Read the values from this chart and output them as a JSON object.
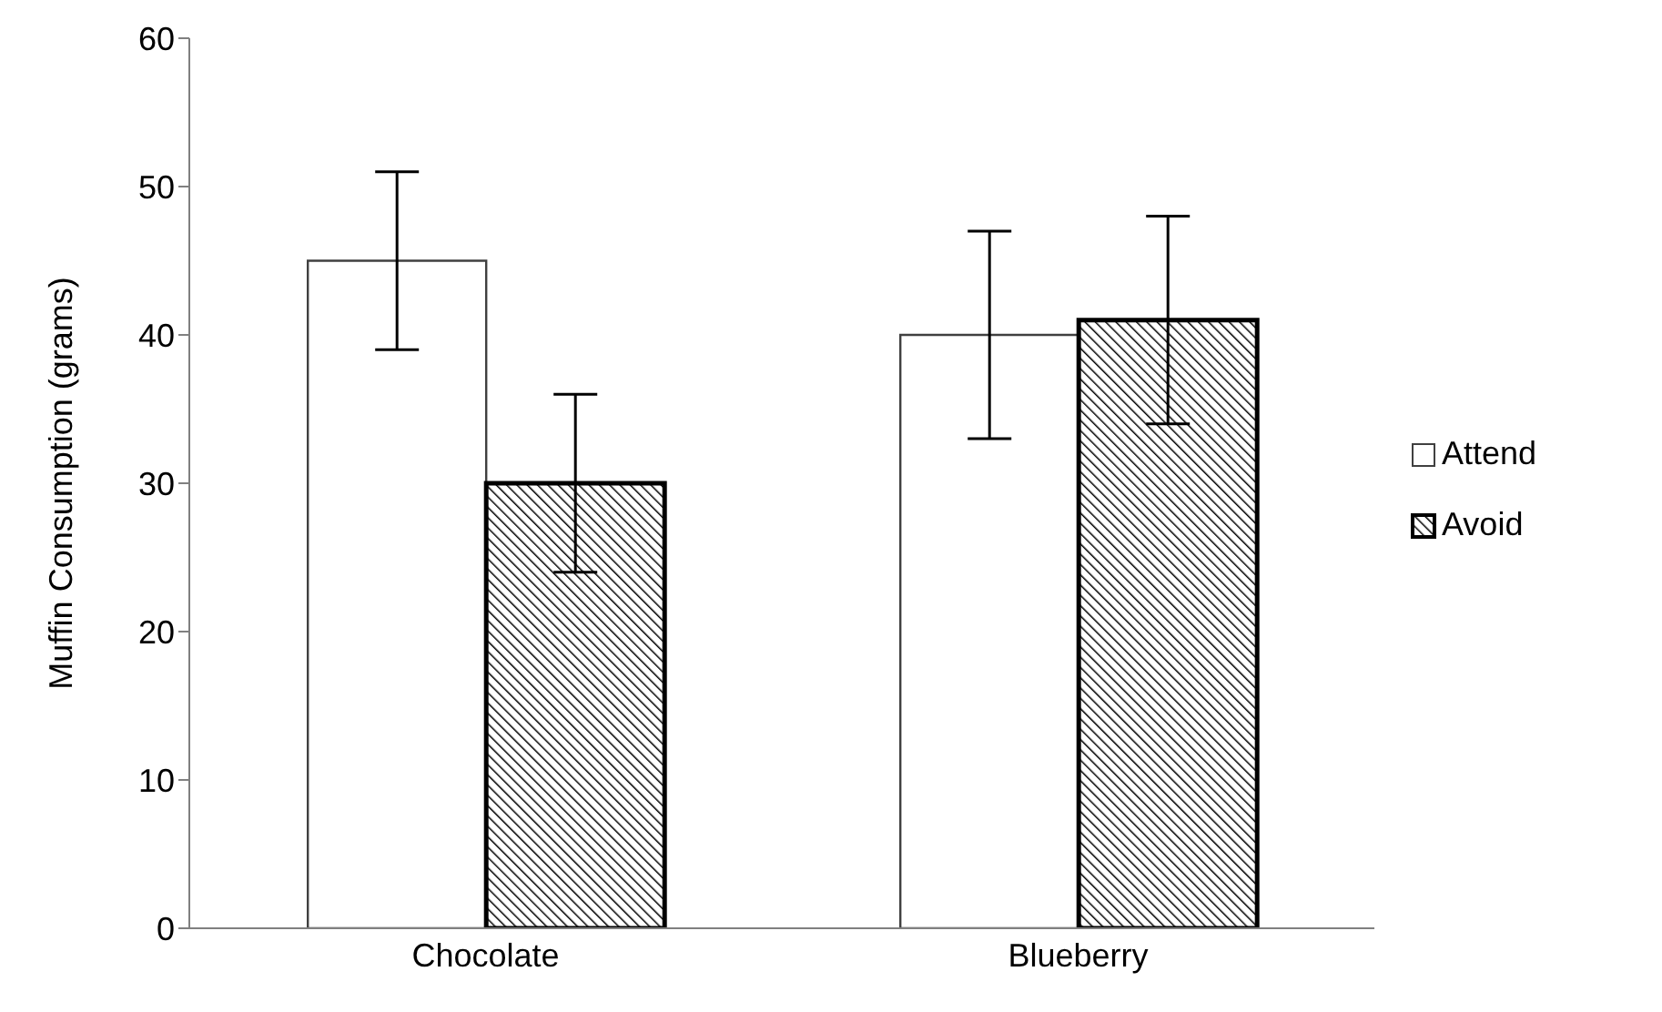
{
  "chart_data": {
    "type": "bar",
    "ylabel": "Muffin Consumption (grams)",
    "categories": [
      "Chocolate",
      "Blueberry"
    ],
    "series": [
      {
        "name": "Attend",
        "color": "#ffffff",
        "values": [
          45,
          40
        ],
        "errors": [
          6,
          7
        ]
      },
      {
        "name": "Avoid",
        "color": "#000000",
        "values": [
          30,
          41
        ],
        "errors": [
          6,
          7
        ]
      }
    ],
    "ylim": [
      0,
      60
    ],
    "yticks": [
      0,
      10,
      20,
      30,
      40,
      50,
      60
    ],
    "grid": false,
    "legend": "right"
  }
}
